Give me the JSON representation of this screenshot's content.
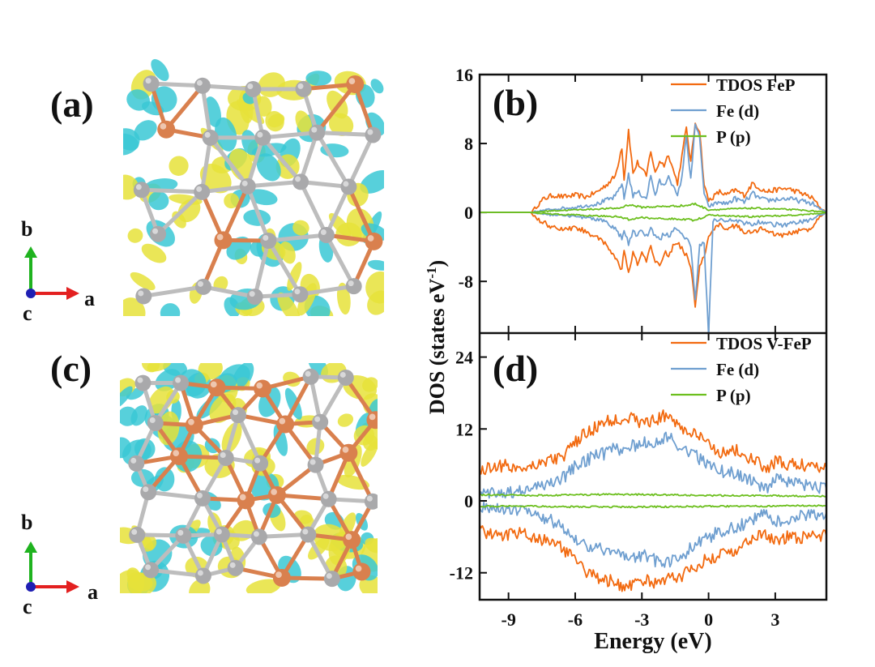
{
  "panels": {
    "a": "(a)",
    "b": "(b)",
    "c": "(c)",
    "d": "(d)"
  },
  "axes_labels": {
    "b": "b",
    "a": "a",
    "c": "c"
  },
  "colors": {
    "tdos": "#f26a10",
    "fed": "#6f9fd0",
    "pp": "#6cbf1e",
    "fe_atom": "#d9804e",
    "p_atom": "#a9a9ab",
    "iso_yellow": "#e6e23a",
    "iso_cyan": "#39c8d5",
    "axis_b": "#1fb31f",
    "axis_a": "#e32020",
    "axis_c": "#1f1fb3"
  },
  "chart_data": [
    {
      "type": "line",
      "panel": "(b)",
      "title": "",
      "xlim": [
        -10.3,
        5.3
      ],
      "ylim": [
        -14,
        16
      ],
      "yticks": [
        -8,
        0,
        8,
        16
      ],
      "ytick_labels": [
        "-8",
        "0",
        "8",
        "16"
      ],
      "legend": [
        "TDOS FeP",
        "Fe (d)",
        "P (p)"
      ],
      "legend_position": "top-right",
      "series": [
        {
          "name": "TDOS FeP",
          "x": [
            -10.3,
            -8.0,
            -7.7,
            -7.4,
            -7.0,
            -6.5,
            -6.0,
            -5.5,
            -5.0,
            -4.6,
            -4.2,
            -3.9,
            -3.8,
            -3.6,
            -3.4,
            -3.2,
            -3.0,
            -2.8,
            -2.6,
            -2.4,
            -2.2,
            -2.0,
            -1.8,
            -1.6,
            -1.4,
            -1.2,
            -1.0,
            -0.8,
            -0.6,
            -0.4,
            -0.2,
            0.0,
            0.2,
            0.5,
            0.8,
            1.2,
            1.6,
            2.0,
            2.3,
            2.6,
            3.0,
            3.5,
            4.0,
            4.4,
            4.7,
            5.0,
            5.3
          ],
          "up": [
            0,
            0,
            0.8,
            1.6,
            2.0,
            1.8,
            2.0,
            1.8,
            2.4,
            3.2,
            4.2,
            7.6,
            3.8,
            9.6,
            4.5,
            5.8,
            5.0,
            4.2,
            7.2,
            4.5,
            6.0,
            5.5,
            6.8,
            5.0,
            3.4,
            6.5,
            9.8,
            5.8,
            10.4,
            9.5,
            3.2,
            1.4,
            1.8,
            2.4,
            2.0,
            2.6,
            2.0,
            3.4,
            2.8,
            2.4,
            2.6,
            2.8,
            2.4,
            2.0,
            1.6,
            0.6,
            0
          ],
          "down": [
            0,
            0,
            -0.8,
            -1.2,
            -1.8,
            -2.0,
            -1.8,
            -2.2,
            -3.0,
            -3.8,
            -5.2,
            -6.8,
            -4.2,
            -7.2,
            -4.8,
            -6.0,
            -4.5,
            -5.8,
            -4.0,
            -5.5,
            -6.2,
            -4.6,
            -5.0,
            -4.0,
            -3.5,
            -4.2,
            -5.0,
            -6.2,
            -10.8,
            -6.0,
            -5.2,
            -3.0,
            -1.8,
            -1.5,
            -2.0,
            -1.5,
            -2.2,
            -2.4,
            -1.8,
            -2.2,
            -2.6,
            -2.6,
            -2.2,
            -2.0,
            -1.6,
            -0.4,
            0
          ]
        },
        {
          "name": "Fe (d)",
          "x": [
            -10.3,
            -8.0,
            -7.5,
            -7.0,
            -6.5,
            -6.0,
            -5.5,
            -5.0,
            -4.6,
            -4.2,
            -3.9,
            -3.8,
            -3.6,
            -3.4,
            -3.2,
            -3.0,
            -2.8,
            -2.6,
            -2.4,
            -2.2,
            -2.0,
            -1.8,
            -1.6,
            -1.4,
            -1.2,
            -1.0,
            -0.8,
            -0.6,
            -0.4,
            -0.2,
            0.0,
            0.2,
            0.5,
            0.8,
            1.2,
            1.6,
            2.0,
            2.3,
            2.6,
            3.0,
            3.5,
            4.0,
            4.4,
            4.7,
            5.0,
            5.3
          ],
          "up": [
            0,
            0,
            0.2,
            0.4,
            0.5,
            0.6,
            0.8,
            1.0,
            1.4,
            1.8,
            3.4,
            1.6,
            4.5,
            1.9,
            2.4,
            2.0,
            1.7,
            4.2,
            2.0,
            3.6,
            3.0,
            4.4,
            3.0,
            1.8,
            4.2,
            8.8,
            4.0,
            10.0,
            8.8,
            2.0,
            0.7,
            0.9,
            1.2,
            1.0,
            1.6,
            1.2,
            2.2,
            1.6,
            1.4,
            1.5,
            1.6,
            1.4,
            1.2,
            1.0,
            0.4,
            0
          ],
          "down": [
            0,
            0,
            -0.2,
            -0.3,
            -0.4,
            -0.5,
            -0.6,
            -0.8,
            -1.1,
            -2.0,
            -3.0,
            -2.0,
            -3.6,
            -2.2,
            -2.8,
            -2.0,
            -2.8,
            -2.0,
            -2.6,
            -3.2,
            -2.4,
            -2.8,
            -2.2,
            -1.8,
            -2.4,
            -3.0,
            -4.0,
            -10.0,
            -4.0,
            -3.6,
            -14.2,
            -0.9,
            -0.8,
            -1.0,
            -0.9,
            -1.2,
            -1.4,
            -1.1,
            -1.2,
            -1.4,
            -1.4,
            -1.2,
            -1.0,
            -0.8,
            -0.3,
            0
          ]
        },
        {
          "name": "P (p)",
          "x": [
            -10.3,
            -8.0,
            -7.0,
            -6.0,
            -5.0,
            -4.0,
            -3.6,
            -3.0,
            -2.0,
            -1.0,
            -0.6,
            0.0,
            1.0,
            2.0,
            3.0,
            4.0,
            5.0,
            5.3
          ],
          "up": [
            0,
            0,
            0.2,
            0.3,
            0.4,
            0.5,
            0.9,
            0.6,
            0.7,
            0.8,
            1.0,
            0.3,
            0.4,
            0.5,
            0.4,
            0.3,
            0.1,
            0
          ],
          "down": [
            0,
            0,
            -0.2,
            -0.3,
            -0.4,
            -0.5,
            -0.8,
            -0.6,
            -0.7,
            -0.8,
            -0.9,
            -0.3,
            -0.4,
            -0.5,
            -0.4,
            -0.3,
            -0.1,
            0
          ]
        }
      ]
    },
    {
      "type": "line",
      "panel": "(d)",
      "title": "",
      "xlabel": "Energy (eV)",
      "ylabel": "DOS (states eV-1)",
      "xlim": [
        -10.3,
        5.3
      ],
      "ylim": [
        -16.5,
        28
      ],
      "xticks": [
        -9,
        -6,
        -3,
        0,
        3
      ],
      "xtick_labels": [
        "-9",
        "-6",
        "-3",
        "0",
        "3"
      ],
      "yticks": [
        -12,
        0,
        12,
        24
      ],
      "ytick_labels": [
        "-12",
        "0",
        "12",
        "24"
      ],
      "legend": [
        "TDOS V-FeP",
        "Fe (d)",
        "P (p)"
      ],
      "legend_position": "top-right",
      "series": [
        {
          "name": "TDOS V-FeP",
          "x": [
            -10.3,
            -9.5,
            -8.5,
            -7.5,
            -6.5,
            -5.8,
            -5.0,
            -4.3,
            -3.6,
            -3.0,
            -2.4,
            -1.8,
            -1.2,
            -0.6,
            0.0,
            0.6,
            1.2,
            1.8,
            2.2,
            2.6,
            3.0,
            3.6,
            4.2,
            4.8,
            5.3
          ],
          "up": [
            5.0,
            6.0,
            5.5,
            6.5,
            7.5,
            10.5,
            12.5,
            13.5,
            14.0,
            13.0,
            13.5,
            14.5,
            12.0,
            11.0,
            9.5,
            8.0,
            8.5,
            7.0,
            6.5,
            5.0,
            6.5,
            6.0,
            6.0,
            6.0,
            5.5
          ],
          "down": [
            -5.0,
            -6.0,
            -5.5,
            -6.5,
            -8.0,
            -11.0,
            -13.0,
            -13.5,
            -14.5,
            -13.0,
            -14.0,
            -13.0,
            -12.5,
            -11.0,
            -9.5,
            -9.0,
            -8.0,
            -7.0,
            -6.0,
            -5.5,
            -6.5,
            -6.0,
            -6.0,
            -6.0,
            -5.8
          ]
        },
        {
          "name": "Fe (d)",
          "x": [
            -10.3,
            -9.5,
            -8.5,
            -7.5,
            -6.5,
            -5.8,
            -5.0,
            -4.3,
            -3.6,
            -3.0,
            -2.4,
            -1.8,
            -1.2,
            -0.6,
            0.0,
            0.6,
            1.2,
            1.8,
            2.2,
            2.6,
            3.0,
            3.6,
            4.2,
            4.8,
            5.3
          ],
          "up": [
            1.0,
            1.5,
            1.5,
            2.5,
            4.0,
            6.5,
            7.5,
            8.5,
            9.0,
            9.5,
            10.0,
            10.5,
            9.0,
            7.5,
            6.0,
            5.0,
            4.5,
            3.5,
            3.0,
            2.0,
            3.5,
            3.0,
            2.5,
            2.5,
            2.0
          ],
          "down": [
            -1.0,
            -1.5,
            -1.5,
            -2.5,
            -4.5,
            -7.0,
            -8.0,
            -8.5,
            -9.5,
            -9.0,
            -10.0,
            -10.5,
            -9.0,
            -7.5,
            -6.0,
            -5.0,
            -4.5,
            -3.5,
            -3.0,
            -2.0,
            -3.5,
            -3.0,
            -2.5,
            -2.5,
            -2.0
          ]
        },
        {
          "name": "P (p)",
          "x": [
            -10.3,
            -8.0,
            -6.0,
            -4.0,
            -2.0,
            0.0,
            2.0,
            4.0,
            5.3
          ],
          "up": [
            1.0,
            0.9,
            1.0,
            1.1,
            1.0,
            0.9,
            0.9,
            0.8,
            0.8
          ],
          "down": [
            -0.9,
            -0.9,
            -1.0,
            -1.0,
            -1.0,
            -0.9,
            -0.9,
            -0.8,
            -0.8
          ]
        }
      ]
    }
  ]
}
